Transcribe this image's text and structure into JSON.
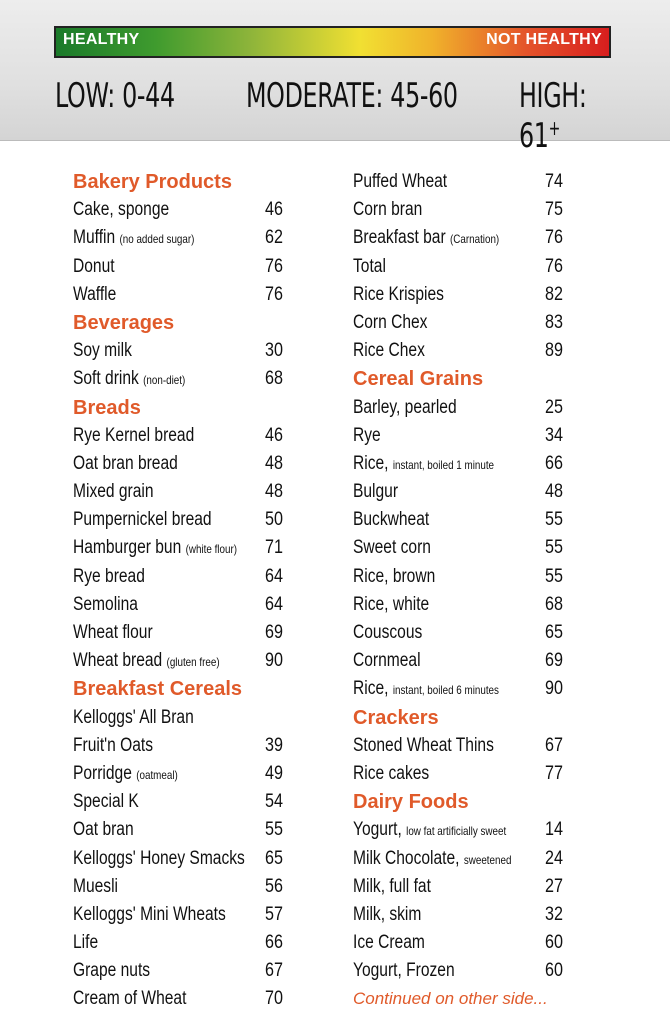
{
  "scale": {
    "healthy_label": "HEALTHY",
    "not_healthy_label": "NOT HEALTHY",
    "low": "LOW: 0-44",
    "moderate": "MODERATE: 45-60",
    "high": "HIGH: 61",
    "high_suffix": "+"
  },
  "left_column": [
    {
      "type": "category",
      "label": "Bakery Products"
    },
    {
      "type": "item",
      "name": "Cake, sponge",
      "note": "",
      "value": "46"
    },
    {
      "type": "item",
      "name": "Muffin",
      "note": "(no added sugar)",
      "value": "62"
    },
    {
      "type": "item",
      "name": "Donut",
      "note": "",
      "value": "76"
    },
    {
      "type": "item",
      "name": "Waffle",
      "note": "",
      "value": "76"
    },
    {
      "type": "category",
      "label": "Beverages"
    },
    {
      "type": "item",
      "name": "Soy milk",
      "note": "",
      "value": "30"
    },
    {
      "type": "item",
      "name": "Soft drink",
      "note": "(non-diet)",
      "value": "68"
    },
    {
      "type": "category",
      "label": "Breads"
    },
    {
      "type": "item",
      "name": "Rye Kernel bread",
      "note": "",
      "value": "46"
    },
    {
      "type": "item",
      "name": "Oat bran bread",
      "note": "",
      "value": "48"
    },
    {
      "type": "item",
      "name": "Mixed grain",
      "note": "",
      "value": "48"
    },
    {
      "type": "item",
      "name": "Pumpernickel bread",
      "note": "",
      "value": "50"
    },
    {
      "type": "item",
      "name": "Hamburger bun",
      "note": "(white flour)",
      "value": "71"
    },
    {
      "type": "item",
      "name": "Rye bread",
      "note": "",
      "value": "64"
    },
    {
      "type": "item",
      "name": "Semolina",
      "note": "",
      "value": "64"
    },
    {
      "type": "item",
      "name": "Wheat flour",
      "note": "",
      "value": "69"
    },
    {
      "type": "item",
      "name": "Wheat bread",
      "note": "(gluten free)",
      "value": "90"
    },
    {
      "type": "category",
      "label": "Breakfast Cereals"
    },
    {
      "type": "item",
      "name": "Kelloggs' All Bran",
      "note": "",
      "value": ""
    },
    {
      "type": "item",
      "name": "Fruit'n Oats",
      "note": "",
      "value": "39"
    },
    {
      "type": "item",
      "name": "Porridge",
      "note": "(oatmeal)",
      "value": "49"
    },
    {
      "type": "item",
      "name": "Special K",
      "note": "",
      "value": "54"
    },
    {
      "type": "item",
      "name": "Oat bran",
      "note": "",
      "value": "55"
    },
    {
      "type": "item",
      "name": "Kelloggs' Honey Smacks",
      "note": "",
      "value": "65"
    },
    {
      "type": "item",
      "name": "Muesli",
      "note": "",
      "value": "56"
    },
    {
      "type": "item",
      "name": "Kelloggs' Mini Wheats",
      "note": "",
      "value": "57"
    },
    {
      "type": "item",
      "name": "Life",
      "note": "",
      "value": "66"
    },
    {
      "type": "item",
      "name": "Grape nuts",
      "note": "",
      "value": "67"
    },
    {
      "type": "item",
      "name": "Cream of Wheat",
      "note": "",
      "value": "70"
    }
  ],
  "right_column": [
    {
      "type": "item",
      "name": "Puffed Wheat",
      "note": "",
      "value": "74"
    },
    {
      "type": "item",
      "name": "Corn bran",
      "note": "",
      "value": "75"
    },
    {
      "type": "item",
      "name": "Breakfast bar",
      "note": "(Carnation)",
      "value": "76"
    },
    {
      "type": "item",
      "name": "Total",
      "note": "",
      "value": "76"
    },
    {
      "type": "item",
      "name": "Rice Krispies",
      "note": "",
      "value": "82"
    },
    {
      "type": "item",
      "name": "Corn Chex",
      "note": "",
      "value": "83"
    },
    {
      "type": "item",
      "name": "Rice Chex",
      "note": "",
      "value": "89"
    },
    {
      "type": "category",
      "label": "Cereal Grains"
    },
    {
      "type": "item",
      "name": "Barley, pearled",
      "note": "",
      "value": "25"
    },
    {
      "type": "item",
      "name": "Rye",
      "note": "",
      "value": "34"
    },
    {
      "type": "item",
      "name": "Rice,",
      "note": "instant, boiled 1 minute",
      "value": "66"
    },
    {
      "type": "item",
      "name": "Bulgur",
      "note": "",
      "value": "48"
    },
    {
      "type": "item",
      "name": "Buckwheat",
      "note": "",
      "value": "55"
    },
    {
      "type": "item",
      "name": "Sweet corn",
      "note": "",
      "value": "55"
    },
    {
      "type": "item",
      "name": "Rice, brown",
      "note": "",
      "value": "55"
    },
    {
      "type": "item",
      "name": "Rice, white",
      "note": "",
      "value": "68"
    },
    {
      "type": "item",
      "name": "Couscous",
      "note": "",
      "value": "65"
    },
    {
      "type": "item",
      "name": "Cornmeal",
      "note": "",
      "value": "69"
    },
    {
      "type": "item",
      "name": "Rice,",
      "note": "instant, boiled 6 minutes",
      "value": "90"
    },
    {
      "type": "category",
      "label": "Crackers"
    },
    {
      "type": "item",
      "name": "Stoned Wheat Thins",
      "note": "",
      "value": "67"
    },
    {
      "type": "item",
      "name": "Rice cakes",
      "note": "",
      "value": "77"
    },
    {
      "type": "category",
      "label": "Dairy Foods"
    },
    {
      "type": "item",
      "name": "Yogurt,",
      "note": "low fat artificially sweet",
      "value": "14"
    },
    {
      "type": "item",
      "name": "Milk Chocolate,",
      "note": "sweetened",
      "value": "24"
    },
    {
      "type": "item",
      "name": "Milk, full fat",
      "note": "",
      "value": "27"
    },
    {
      "type": "item",
      "name": "Milk, skim",
      "note": "",
      "value": "32"
    },
    {
      "type": "item",
      "name": "Ice Cream",
      "note": "",
      "value": "60"
    },
    {
      "type": "item",
      "name": "Yogurt, Frozen",
      "note": "",
      "value": "60"
    },
    {
      "type": "continued",
      "label": "Continued on other side..."
    }
  ],
  "colors": {
    "category": "#e05a2a",
    "healthy": "#1a7a2a",
    "not_healthy": "#d81e1e"
  }
}
